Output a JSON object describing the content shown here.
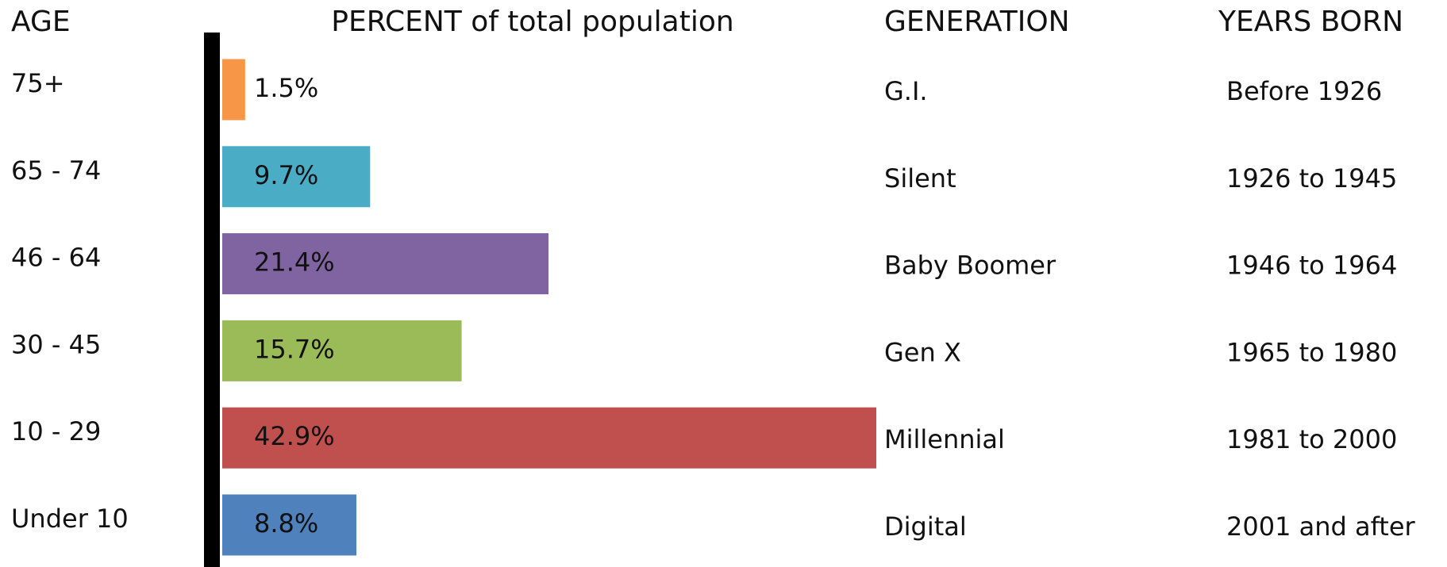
{
  "chart_data": {
    "type": "bar",
    "headers": [
      "AGE",
      "PERCENT of total population",
      "GENERATION",
      "YEARS BORN"
    ],
    "categories": [
      "75+",
      "65 - 74",
      "46 - 64",
      "30 - 45",
      "10 - 29",
      "Under 10"
    ],
    "values": [
      1.5,
      9.7,
      21.4,
      15.7,
      42.9,
      8.8
    ],
    "value_labels": [
      "1.5%",
      "9.7%",
      "21.4%",
      "15.7%",
      "42.9%",
      "8.8%"
    ],
    "colors": [
      "#f79646",
      "#4bacc6",
      "#8064a2",
      "#9bbb59",
      "#c0504d",
      "#4f81bd"
    ],
    "generations": [
      "G.I.",
      "Silent",
      "Baby Boomer",
      "Gen X",
      "Millennial",
      "Digital"
    ],
    "years_born": [
      "Before 1926",
      "1926 to 1945",
      "1946 to 1964",
      "1965 to 1980",
      "1981 to 2000",
      "2001 and after"
    ]
  }
}
